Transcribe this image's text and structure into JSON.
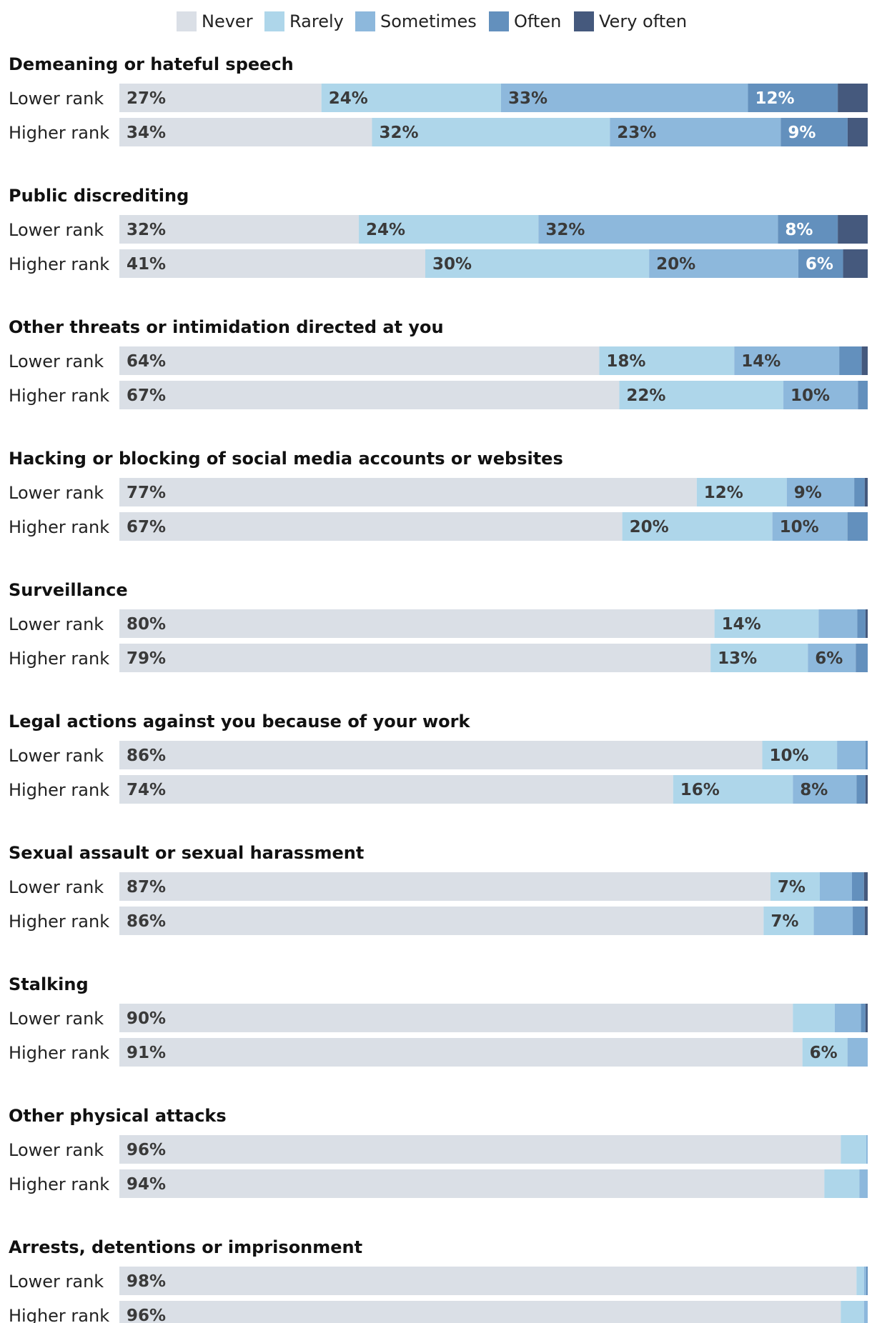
{
  "chart_data": {
    "type": "bar",
    "orientation": "horizontal",
    "stacked": true,
    "normalized": true,
    "xlim": [
      0,
      100
    ],
    "legend": [
      "Never",
      "Rarely",
      "Sometimes",
      "Often",
      "Very often"
    ],
    "legend_position": "top",
    "colors": [
      "#dadfe6",
      "#aed6ea",
      "#8db8dc",
      "#6390bd",
      "#45597d"
    ],
    "label_colors": [
      "#3a3a3a",
      "#3a3a3a",
      "#3a3a3a",
      "#ffffff",
      "#ffffff"
    ],
    "groups": [
      {
        "title": "Demeaning or hateful speech",
        "rows": [
          {
            "label": "Lower rank",
            "values": [
              27,
              24,
              33,
              12,
              4
            ],
            "labels": [
              "27%",
              "24%",
              "33%",
              "12%",
              ""
            ]
          },
          {
            "label": "Higher rank",
            "values": [
              34,
              32,
              23,
              9,
              2.7
            ],
            "labels": [
              "34%",
              "32%",
              "23%",
              "9%",
              ""
            ]
          }
        ]
      },
      {
        "title": "Public discrediting",
        "rows": [
          {
            "label": "Lower rank",
            "values": [
              32,
              24,
              32,
              8,
              4
            ],
            "labels": [
              "32%",
              "24%",
              "32%",
              "8%",
              ""
            ]
          },
          {
            "label": "Higher rank",
            "values": [
              41,
              30,
              20,
              6,
              3.3
            ],
            "labels": [
              "41%",
              "30%",
              "20%",
              "6%",
              ""
            ]
          }
        ]
      },
      {
        "title": "Other threats or intimidation directed at you",
        "rows": [
          {
            "label": "Lower rank",
            "values": [
              64,
              18,
              14,
              3,
              0.8
            ],
            "labels": [
              "64%",
              "18%",
              "14%",
              "",
              ""
            ]
          },
          {
            "label": "Higher rank",
            "values": [
              67,
              22,
              10,
              1.3,
              0
            ],
            "labels": [
              "67%",
              "22%",
              "10%",
              "",
              ""
            ]
          }
        ]
      },
      {
        "title": "Hacking or blocking of social media accounts or websites",
        "rows": [
          {
            "label": "Lower rank",
            "values": [
              77,
              12,
              9,
              1.4,
              0.4
            ],
            "labels": [
              "77%",
              "12%",
              "9%",
              "",
              ""
            ]
          },
          {
            "label": "Higher rank",
            "values": [
              67,
              20,
              10,
              2.7,
              0
            ],
            "labels": [
              "67%",
              "20%",
              "10%",
              "",
              ""
            ]
          }
        ]
      },
      {
        "title": "Surveillance",
        "rows": [
          {
            "label": "Lower rank",
            "values": [
              80,
              14,
              5.2,
              1.1,
              0.3
            ],
            "labels": [
              "80%",
              "14%",
              "",
              "",
              ""
            ]
          },
          {
            "label": "Higher rank",
            "values": [
              79,
              13,
              6.4,
              1.6,
              0
            ],
            "labels": [
              "79%",
              "13%",
              "6%",
              "",
              ""
            ]
          }
        ]
      },
      {
        "title": "Legal actions against you because of your work",
        "rows": [
          {
            "label": "Lower rank",
            "values": [
              86,
              10,
              3.8,
              0.3,
              0
            ],
            "labels": [
              "86%",
              "10%",
              "",
              "",
              ""
            ]
          },
          {
            "label": "Higher rank",
            "values": [
              74,
              16,
              8.5,
              1.2,
              0.3
            ],
            "labels": [
              "74%",
              "16%",
              "8%",
              "",
              ""
            ]
          }
        ]
      },
      {
        "title": "Sexual assault or sexual harassment",
        "rows": [
          {
            "label": "Lower rank",
            "values": [
              87,
              6.6,
              4.3,
              1.6,
              0.5
            ],
            "labels": [
              "87%",
              "7%",
              "",
              "",
              ""
            ]
          },
          {
            "label": "Higher rank",
            "values": [
              86,
              6.7,
              5.2,
              1.6,
              0.4
            ],
            "labels": [
              "86%",
              "7%",
              "",
              "",
              ""
            ]
          }
        ]
      },
      {
        "title": "Stalking",
        "rows": [
          {
            "label": "Lower rank",
            "values": [
              90,
              5.6,
              3.5,
              0.6,
              0.3
            ],
            "labels": [
              "90%",
              "",
              "",
              "",
              ""
            ]
          },
          {
            "label": "Higher rank",
            "values": [
              91,
              6,
              2.7,
              0,
              0
            ],
            "labels": [
              "91%",
              "6%",
              "",
              "",
              ""
            ]
          }
        ]
      },
      {
        "title": "Other physical attacks",
        "rows": [
          {
            "label": "Lower rank",
            "values": [
              96.4,
              3.4,
              0.2,
              0,
              0
            ],
            "labels": [
              "96%",
              "",
              "",
              "",
              ""
            ]
          },
          {
            "label": "Higher rank",
            "values": [
              94.2,
              4.7,
              1.1,
              0,
              0
            ],
            "labels": [
              "94%",
              "",
              "",
              "",
              ""
            ]
          }
        ]
      },
      {
        "title": "Arrests, detentions or imprisonment",
        "rows": [
          {
            "label": "Lower rank",
            "values": [
              98.5,
              1,
              0.3,
              0.2,
              0
            ],
            "labels": [
              "98%",
              "",
              "",
              "",
              ""
            ]
          },
          {
            "label": "Higher rank",
            "values": [
              96.4,
              3.1,
              0.5,
              0,
              0
            ],
            "labels": [
              "96%",
              "",
              "",
              "",
              ""
            ]
          }
        ]
      }
    ]
  }
}
